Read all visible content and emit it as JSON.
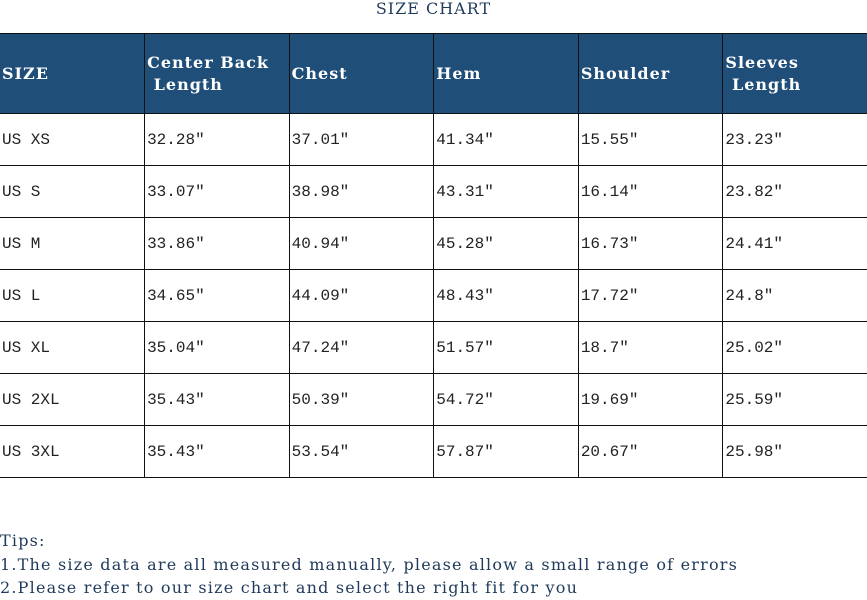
{
  "title": "SIZE CHART",
  "headers": [
    "SIZE",
    "Center Back\n Length",
    "Chest",
    "Hem",
    "Shoulder",
    "Sleeves\n Length"
  ],
  "rows": [
    [
      "US XS",
      "32.28″",
      "37.01″",
      "41.34″",
      "15.55″",
      "23.23″"
    ],
    [
      "US S",
      "33.07″",
      "38.98″",
      "43.31″",
      "16.14″",
      "23.82″"
    ],
    [
      "US M",
      "33.86″",
      "40.94″",
      "45.28″",
      "16.73″",
      "24.41″"
    ],
    [
      "US L",
      "34.65″",
      "44.09″",
      "48.43″",
      "17.72″",
      "24.8″"
    ],
    [
      "US XL",
      "35.04″",
      "47.24″",
      "51.57″",
      "18.7″",
      "25.02″"
    ],
    [
      "US 2XL",
      "35.43″",
      "50.39″",
      "54.72″",
      "19.69″",
      "25.59″"
    ],
    [
      "US 3XL",
      "35.43″",
      "53.54″",
      "57.87″",
      "20.67″",
      "25.98″"
    ]
  ],
  "tips": {
    "heading": "Tips:",
    "lines": [
      "1.The size data are all measured manually, please allow a small range of errors",
      "2.Please refer to our size chart and select the right fit for you"
    ]
  },
  "colors": {
    "header_bg": "#1f4e79",
    "header_text": "#ffffff"
  }
}
